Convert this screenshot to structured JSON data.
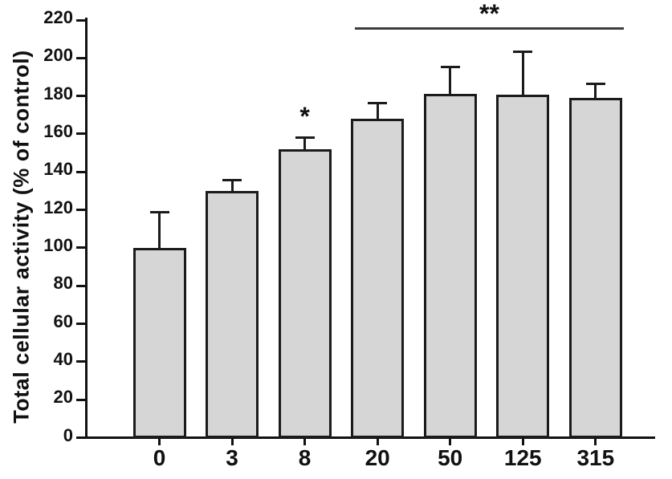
{
  "chart_data": {
    "type": "bar",
    "title": "",
    "ylabel": "Total cellular activity (% of control)",
    "xlabel": "",
    "categories": [
      "0",
      "3",
      "8",
      "20",
      "50",
      "125",
      "315"
    ],
    "values": [
      100,
      130,
      152,
      168,
      181,
      180.5,
      179
    ],
    "errors_plus": [
      19,
      6,
      6.5,
      8.5,
      14.5,
      23,
      7.5
    ],
    "ylim": [
      0,
      220
    ],
    "yticks": [
      0,
      20,
      40,
      60,
      80,
      100,
      120,
      140,
      160,
      180,
      200,
      220
    ],
    "grid": false,
    "legend": null,
    "colors": {
      "bar_fill": "#d6d6d6",
      "bar_border": "#1b1b1b",
      "axis": "#111111",
      "text": "#111111",
      "bracket_line": "#3d3d3d"
    },
    "annotations": [
      {
        "type": "star",
        "text": "*",
        "category": "8"
      },
      {
        "type": "bracket",
        "text": "**",
        "from": "20",
        "to": "315"
      }
    ]
  }
}
